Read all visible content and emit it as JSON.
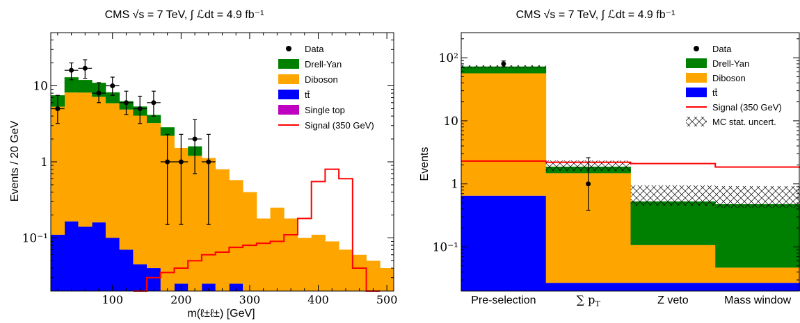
{
  "colors": {
    "drell_yan": "#008000",
    "diboson": "#ffa500",
    "ttbar": "#0000ff",
    "single_top": "#c000c0",
    "signal": "#ff0000",
    "data": "#000000"
  },
  "chart_data": [
    {
      "type": "histogram-stacked",
      "title": "CMS √s = 7 TeV, ∫ ℒdt = 4.9 fb⁻¹",
      "xlabel": "m(ℓ±ℓ±) [GeV]",
      "ylabel": "Events / 20 GeV",
      "xlim": [
        10,
        510
      ],
      "ylim": [
        0.02,
        50
      ],
      "yscale": "log",
      "xticks": [
        100,
        200,
        300,
        400,
        500
      ],
      "yticks": [
        {
          "v": 0.1,
          "label": "10⁻¹"
        },
        {
          "v": 1,
          "label": "1"
        },
        {
          "v": 10,
          "label": "10"
        }
      ],
      "legend_position": "top-right",
      "legend": [
        {
          "label": "Data",
          "kind": "marker",
          "color": "data"
        },
        {
          "label": "Drell-Yan",
          "kind": "box",
          "color": "drell_yan"
        },
        {
          "label": "Diboson",
          "kind": "box",
          "color": "diboson"
        },
        {
          "label": "tt̄",
          "kind": "box",
          "color": "ttbar"
        },
        {
          "label": "Single top",
          "kind": "box",
          "color": "single_top"
        },
        {
          "label": "Signal (350 GeV)",
          "kind": "line",
          "color": "signal"
        }
      ],
      "bin_edges": [
        10,
        30,
        50,
        70,
        90,
        110,
        130,
        150,
        170,
        190,
        210,
        230,
        250,
        270,
        290,
        310,
        330,
        350,
        370,
        390,
        410,
        430,
        450,
        470,
        490,
        510
      ],
      "stack": [
        {
          "name": "ttbar",
          "color": "ttbar",
          "values": [
            0.11,
            0.165,
            0.14,
            0.16,
            0.1,
            0.07,
            0.045,
            0.04,
            0.0,
            0.025,
            0.0,
            0.025,
            0.0,
            0.025,
            0.0,
            0,
            0,
            0,
            0,
            0,
            0,
            0,
            0,
            0,
            0
          ]
        },
        {
          "name": "diboson",
          "color": "diboson",
          "values": [
            5.2,
            8.0,
            8.0,
            7.0,
            5.8,
            4.8,
            4.0,
            3.2,
            2.2,
            1.5,
            1.2,
            1.1,
            0.8,
            0.55,
            0.4,
            0.18,
            0.25,
            0.18,
            0.1,
            0.11,
            0.09,
            0.07,
            0.06,
            0.05,
            0.04
          ]
        },
        {
          "name": "drell_yan",
          "color": "drell_yan",
          "values": [
            2.2,
            4.8,
            3.8,
            3.8,
            2.3,
            1.4,
            1.3,
            0.9,
            0.65,
            0.0,
            0.4,
            0.0,
            0,
            0,
            0,
            0,
            0,
            0,
            0,
            0,
            0,
            0,
            0,
            0,
            0
          ]
        }
      ],
      "signal": [
        0,
        0,
        0,
        0,
        0,
        0,
        0.02,
        0.03,
        0.035,
        0.04,
        0.05,
        0.06,
        0.065,
        0.075,
        0.08,
        0.085,
        0.09,
        0.11,
        0.18,
        0.55,
        0.8,
        0.6,
        0.04,
        0.01,
        0
      ],
      "data": [
        {
          "x": 20,
          "y": 5,
          "lo": 3.2,
          "hi": 7.5
        },
        {
          "x": 40,
          "y": 16,
          "lo": 12,
          "hi": 20
        },
        {
          "x": 60,
          "y": 17,
          "lo": 12.5,
          "hi": 22
        },
        {
          "x": 80,
          "y": 8,
          "lo": 6,
          "hi": 11
        },
        {
          "x": 100,
          "y": 10,
          "lo": 7.5,
          "hi": 13
        },
        {
          "x": 120,
          "y": 6,
          "lo": 4.2,
          "hi": 8.5
        },
        {
          "x": 140,
          "y": 5,
          "lo": 3.2,
          "hi": 7.3
        },
        {
          "x": 160,
          "y": 6,
          "lo": 4,
          "hi": 8.5
        },
        {
          "x": 180,
          "y": 1,
          "lo": 0.15,
          "hi": 2.3
        },
        {
          "x": 200,
          "y": 1,
          "lo": 0.15,
          "hi": 2.3
        },
        {
          "x": 220,
          "y": 2,
          "lo": 0.7,
          "hi": 3.6
        },
        {
          "x": 240,
          "y": 1,
          "lo": 0.15,
          "hi": 2.3
        }
      ]
    },
    {
      "type": "histogram-stacked",
      "title": "CMS √s = 7 TeV, ∫ ℒdt = 4.9 fb⁻¹",
      "xlabel": "",
      "ylabel": "Events",
      "ylim": [
        0.02,
        250
      ],
      "yscale": "log",
      "yticks": [
        {
          "v": 0.1,
          "label": "10⁻¹"
        },
        {
          "v": 1,
          "label": "1"
        },
        {
          "v": 10,
          "label": "10"
        },
        {
          "v": 100,
          "label": "10²"
        }
      ],
      "categories": [
        "Pre-selection",
        "∑ pT",
        "Z veto",
        "Mass window"
      ],
      "legend_position": "top-right",
      "legend": [
        {
          "label": "Data",
          "kind": "marker",
          "color": "data"
        },
        {
          "label": "Drell-Yan",
          "kind": "box",
          "color": "drell_yan"
        },
        {
          "label": "Diboson",
          "kind": "box",
          "color": "diboson"
        },
        {
          "label": "tt̄",
          "kind": "box",
          "color": "ttbar"
        },
        {
          "label": "Signal (350 GeV)",
          "kind": "line",
          "color": "signal"
        },
        {
          "label": "MC stat. uncert.",
          "kind": "hatch",
          "color": "data"
        }
      ],
      "stack": [
        {
          "name": "ttbar",
          "color": "ttbar",
          "values": [
            0.65,
            0.027,
            0.027,
            0.027
          ]
        },
        {
          "name": "diboson",
          "color": "diboson",
          "values": [
            56,
            1.45,
            0.08,
            0.02
          ]
        },
        {
          "name": "drell_yan",
          "color": "drell_yan",
          "values": [
            16,
            0.4,
            0.42,
            0.43
          ]
        }
      ],
      "uncertainty": [
        {
          "lo": 68,
          "hi": 76
        },
        {
          "lo": 1.6,
          "hi": 2.35
        },
        {
          "lo": 0.45,
          "hi": 0.95
        },
        {
          "lo": 0.42,
          "hi": 0.92
        }
      ],
      "signal": [
        2.3,
        2.2,
        2.1,
        1.85
      ],
      "data": [
        {
          "cat": 0,
          "y": 80,
          "lo": 72,
          "hi": 89
        },
        {
          "cat": 1,
          "y": 1,
          "lo": 0.38,
          "hi": 2.6
        }
      ]
    }
  ]
}
